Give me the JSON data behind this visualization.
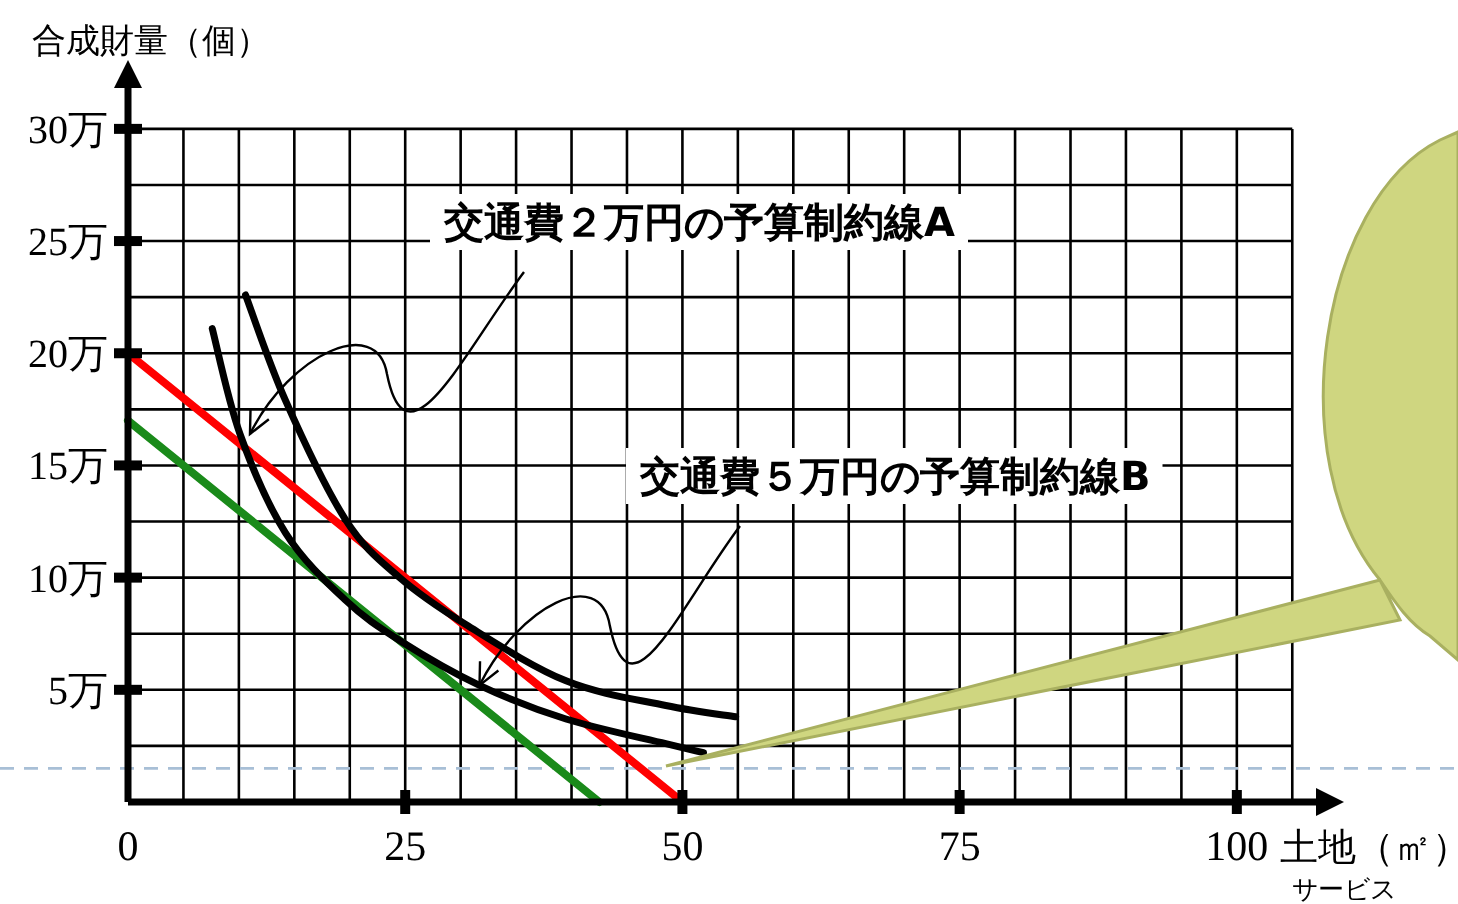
{
  "chart_data": {
    "type": "line",
    "ylabel": "合成財量（個）",
    "xlabel": "土地（㎡）",
    "xlim": [
      0,
      107.5
    ],
    "ylim": [
      0,
      32
    ],
    "xticks": [
      0,
      {
        "value": 5,
        "label": null
      },
      {
        "value": 10,
        "label": null
      },
      {
        "value": 15,
        "label": null
      },
      {
        "value": 20,
        "label": null
      },
      25,
      {
        "value": 30,
        "label": null
      },
      {
        "value": 35,
        "label": null
      },
      {
        "value": 40,
        "label": null
      },
      {
        "value": 45,
        "label": null
      },
      50,
      {
        "value": 55,
        "label": null
      },
      {
        "value": 60,
        "label": null
      },
      {
        "value": 65,
        "label": null
      },
      {
        "value": 70,
        "label": null
      },
      75,
      {
        "value": 80,
        "label": null
      },
      {
        "value": 85,
        "label": null
      },
      {
        "value": 90,
        "label": null
      },
      {
        "value": 95,
        "label": null
      },
      100,
      {
        "value": 105,
        "label": null
      }
    ],
    "yticks": [
      {
        "value": 2.5,
        "label": null
      },
      {
        "value": 5,
        "label": "5万"
      },
      {
        "value": 7.5,
        "label": null
      },
      {
        "value": 10,
        "label": "10万"
      },
      {
        "value": 12.5,
        "label": null
      },
      {
        "value": 15,
        "label": "15万"
      },
      {
        "value": 17.5,
        "label": null
      },
      {
        "value": 20,
        "label": "20万"
      },
      {
        "value": 22.5,
        "label": null
      },
      {
        "value": 25,
        "label": "25万"
      },
      {
        "value": 27.5,
        "label": null
      },
      {
        "value": 30,
        "label": "30万"
      }
    ],
    "grid": true,
    "marker": "none",
    "line_style": "solid",
    "series": [
      {
        "color": "#ff0000",
        "x": [
          0,
          50
        ],
        "values": [
          20,
          0
        ]
      },
      {
        "color": "#1a8a1a",
        "x": [
          0,
          42.5
        ],
        "values": [
          17,
          0
        ]
      },
      {
        "color": "#000000",
        "x": [
          10.6,
          14.2,
          19.6,
          24.5,
          30.5,
          39.5,
          48.5,
          54.8
        ],
        "values": [
          22.6,
          17.9,
          12.6,
          10.0,
          7.9,
          5.4,
          4.3,
          3.8
        ]
      },
      {
        "color": "#000000",
        "x": [
          7.6,
          10.1,
          14.2,
          19.6,
          24.5,
          31.7,
          39.5,
          48.5,
          51.9
        ],
        "values": [
          21.1,
          16.4,
          12.0,
          9.0,
          7.2,
          5.2,
          3.7,
          2.6,
          2.2
        ]
      }
    ],
    "ref_lines": [
      {
        "axis": "y",
        "value": 1.5,
        "color": "#a8bfd6",
        "line_style": "dashed"
      }
    ],
    "annotations": [
      {
        "text": "交通費２万円の予算制約線A",
        "x": 11,
        "y": 16.4
      },
      {
        "text": "交通費５万円の予算制約線B",
        "x": 31.7,
        "y": 5.2
      },
      "サービス"
    ]
  }
}
